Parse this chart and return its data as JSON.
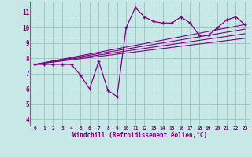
{
  "xlabel": "Windchill (Refroidissement éolien,°C)",
  "bg_color": "#c8e8e8",
  "grid_color": "#a0c8c8",
  "line_color": "#800080",
  "xlim": [
    -0.5,
    23.5
  ],
  "ylim": [
    3.6,
    11.7
  ],
  "yticks": [
    4,
    5,
    6,
    7,
    8,
    9,
    10,
    11
  ],
  "xticks": [
    0,
    1,
    2,
    3,
    4,
    5,
    6,
    7,
    8,
    9,
    10,
    11,
    12,
    13,
    14,
    15,
    16,
    17,
    18,
    19,
    20,
    21,
    22,
    23
  ],
  "main_x": [
    0,
    1,
    2,
    3,
    4,
    5,
    6,
    7,
    8,
    9,
    10,
    11,
    12,
    13,
    14,
    15,
    16,
    17,
    18,
    19,
    20,
    21,
    22,
    23
  ],
  "main_y": [
    7.6,
    7.6,
    7.6,
    7.6,
    7.6,
    6.9,
    6.0,
    7.8,
    5.9,
    5.5,
    10.0,
    11.3,
    10.7,
    10.4,
    10.3,
    10.3,
    10.7,
    10.3,
    9.5,
    9.5,
    10.0,
    10.5,
    10.7,
    10.2
  ],
  "line1_x": [
    0,
    23
  ],
  "line1_y": [
    7.6,
    9.3
  ],
  "line2_x": [
    0,
    23
  ],
  "line2_y": [
    7.6,
    9.6
  ],
  "line3_x": [
    0,
    23
  ],
  "line3_y": [
    7.6,
    9.9
  ],
  "line4_x": [
    0,
    23
  ],
  "line4_y": [
    7.6,
    10.2
  ]
}
